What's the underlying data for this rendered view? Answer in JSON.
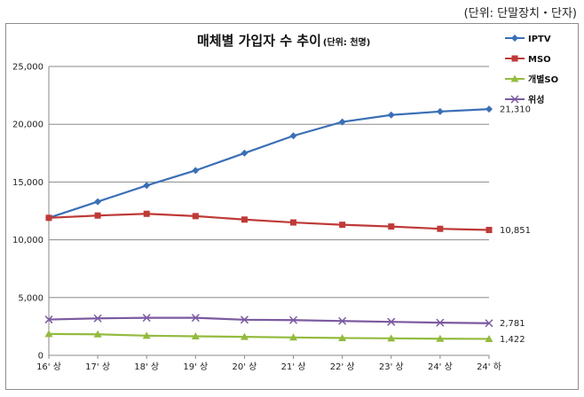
{
  "unit_note": "(단위:  단말장치・단자)",
  "chart_data": {
    "type": "line",
    "title": "매체별 가입자 수 추이",
    "subtitle": "(단위: 천명)",
    "categories": [
      "16' 상",
      "17' 상",
      "18' 상",
      "19' 상",
      "20' 상",
      "21' 상",
      "22' 상",
      "23' 상",
      "24' 상",
      "24' 하"
    ],
    "ylim": [
      0,
      25000
    ],
    "yticks": [
      "0",
      "5,000",
      "10,000",
      "15,000",
      "20,000",
      "25,000"
    ],
    "ytick_values": [
      0,
      5000,
      10000,
      15000,
      20000,
      25000
    ],
    "grid": "horizontal",
    "legend_position": "right",
    "series": [
      {
        "name": "IPTV",
        "color": "#3b6fb6",
        "marker": "diamond",
        "values": [
          11900,
          13300,
          14700,
          16000,
          17500,
          19000,
          20200,
          20800,
          21100,
          21310
        ],
        "end_label": "21,310"
      },
      {
        "name": "MSO",
        "color": "#be3a37",
        "marker": "square",
        "values": [
          11900,
          12100,
          12250,
          12050,
          11750,
          11500,
          11300,
          11150,
          10950,
          10851
        ],
        "end_label": "10,851"
      },
      {
        "name": "개별SO",
        "color": "#93bb3f",
        "marker": "triangle",
        "values": [
          1850,
          1820,
          1700,
          1650,
          1600,
          1550,
          1500,
          1470,
          1440,
          1422
        ],
        "end_label": "1,422"
      },
      {
        "name": "위성",
        "color": "#7b5aa0",
        "marker": "x",
        "values": [
          3100,
          3200,
          3250,
          3250,
          3080,
          3050,
          2970,
          2900,
          2830,
          2781
        ],
        "end_label": "2,781"
      }
    ]
  }
}
